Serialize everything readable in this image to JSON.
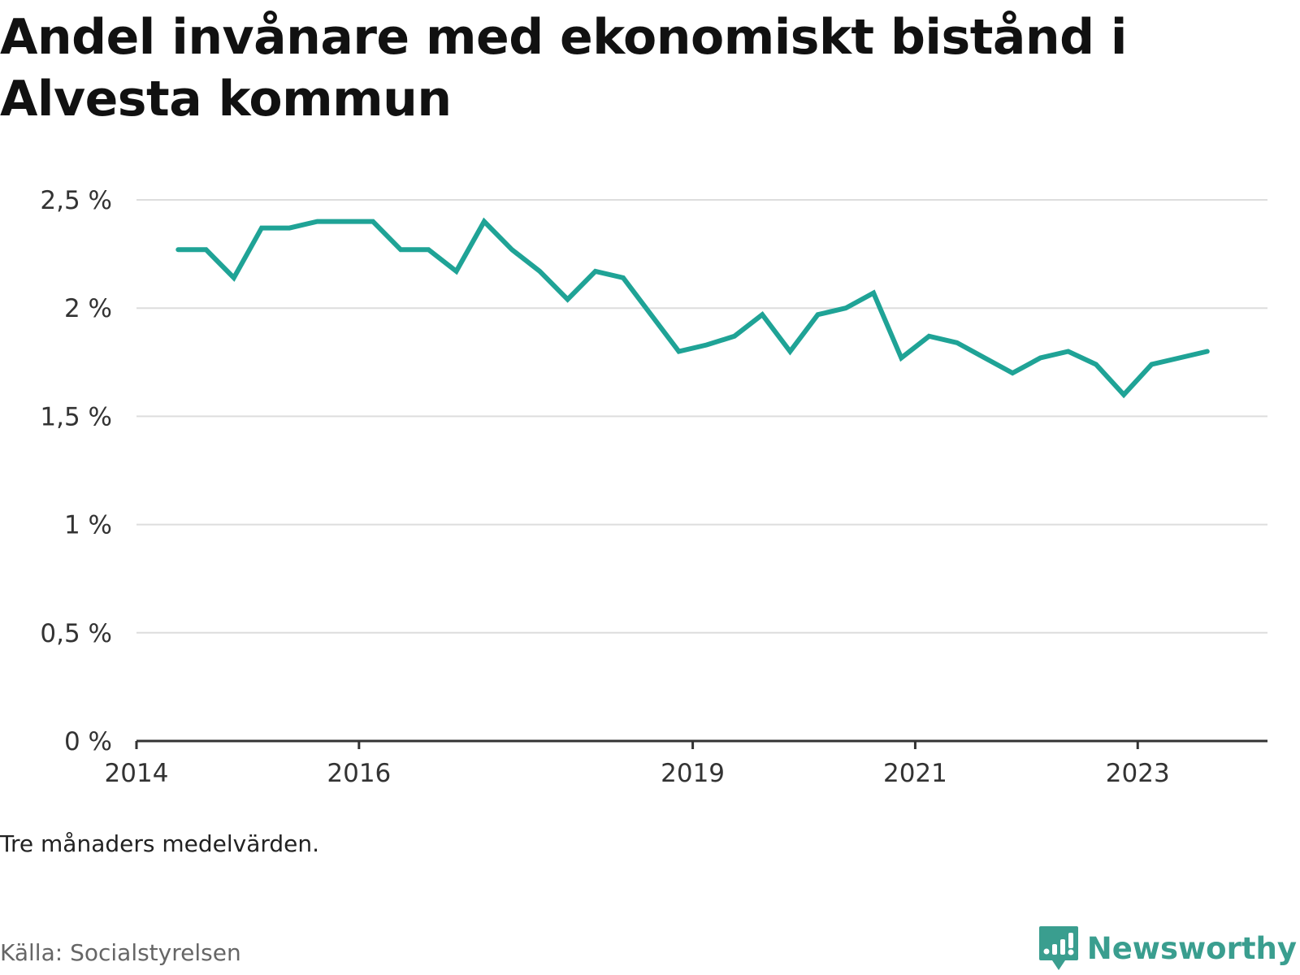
{
  "title": "Andel invånare med ekonomiskt bistånd i Alvesta kommun",
  "note": "Tre månaders medelvärden.",
  "source": "Källa: Socialstyrelsen",
  "brand": {
    "name": "Newsworthy",
    "icon": "newsworthy-logo-icon",
    "color": "#3a9e8f"
  },
  "colors": {
    "line": "#1fa396",
    "grid": "#dddddd",
    "axis": "#333333"
  },
  "chart_data": {
    "type": "line",
    "title": "Andel invånare med ekonomiskt bistånd i Alvesta kommun",
    "xlabel": "",
    "ylabel": "",
    "x_unit": "quarter (three-month average)",
    "ylim": [
      0,
      2.5
    ],
    "yticks": [
      0,
      0.5,
      1,
      1.5,
      2,
      2.5
    ],
    "ytick_labels": [
      "0 %",
      "0,5 %",
      "1 %",
      "1,5 %",
      "2 %",
      "2,5 %"
    ],
    "xlim": [
      "2014-01",
      "2024-03"
    ],
    "xticks": [
      "2014",
      "2016",
      "2019",
      "2021",
      "2023"
    ],
    "grid": true,
    "legend": "none",
    "series": [
      {
        "x": [
          "2014-Q2",
          "2014-Q3",
          "2014-Q4",
          "2015-Q1",
          "2015-Q2",
          "2015-Q3",
          "2015-Q4",
          "2016-Q1",
          "2016-Q2",
          "2016-Q3",
          "2016-Q4",
          "2017-Q1",
          "2017-Q2",
          "2017-Q3",
          "2017-Q4",
          "2018-Q1",
          "2018-Q2",
          "2018-Q3",
          "2018-Q4",
          "2019-Q1",
          "2019-Q2",
          "2019-Q3",
          "2019-Q4",
          "2020-Q1",
          "2020-Q2",
          "2020-Q3",
          "2020-Q4",
          "2021-Q1",
          "2021-Q2",
          "2021-Q3",
          "2021-Q4",
          "2022-Q1",
          "2022-Q2",
          "2022-Q3",
          "2022-Q4",
          "2023-Q1",
          "2023-Q2",
          "2023-Q3"
        ],
        "values": [
          2.27,
          2.27,
          2.14,
          2.37,
          2.37,
          2.4,
          2.4,
          2.4,
          2.27,
          2.27,
          2.17,
          2.4,
          2.27,
          2.17,
          2.04,
          2.17,
          2.14,
          1.97,
          1.8,
          1.83,
          1.87,
          1.97,
          1.8,
          1.97,
          2.0,
          2.07,
          1.77,
          1.87,
          1.84,
          1.77,
          1.7,
          1.77,
          1.8,
          1.74,
          1.6,
          1.74,
          1.77,
          1.8
        ]
      }
    ]
  }
}
